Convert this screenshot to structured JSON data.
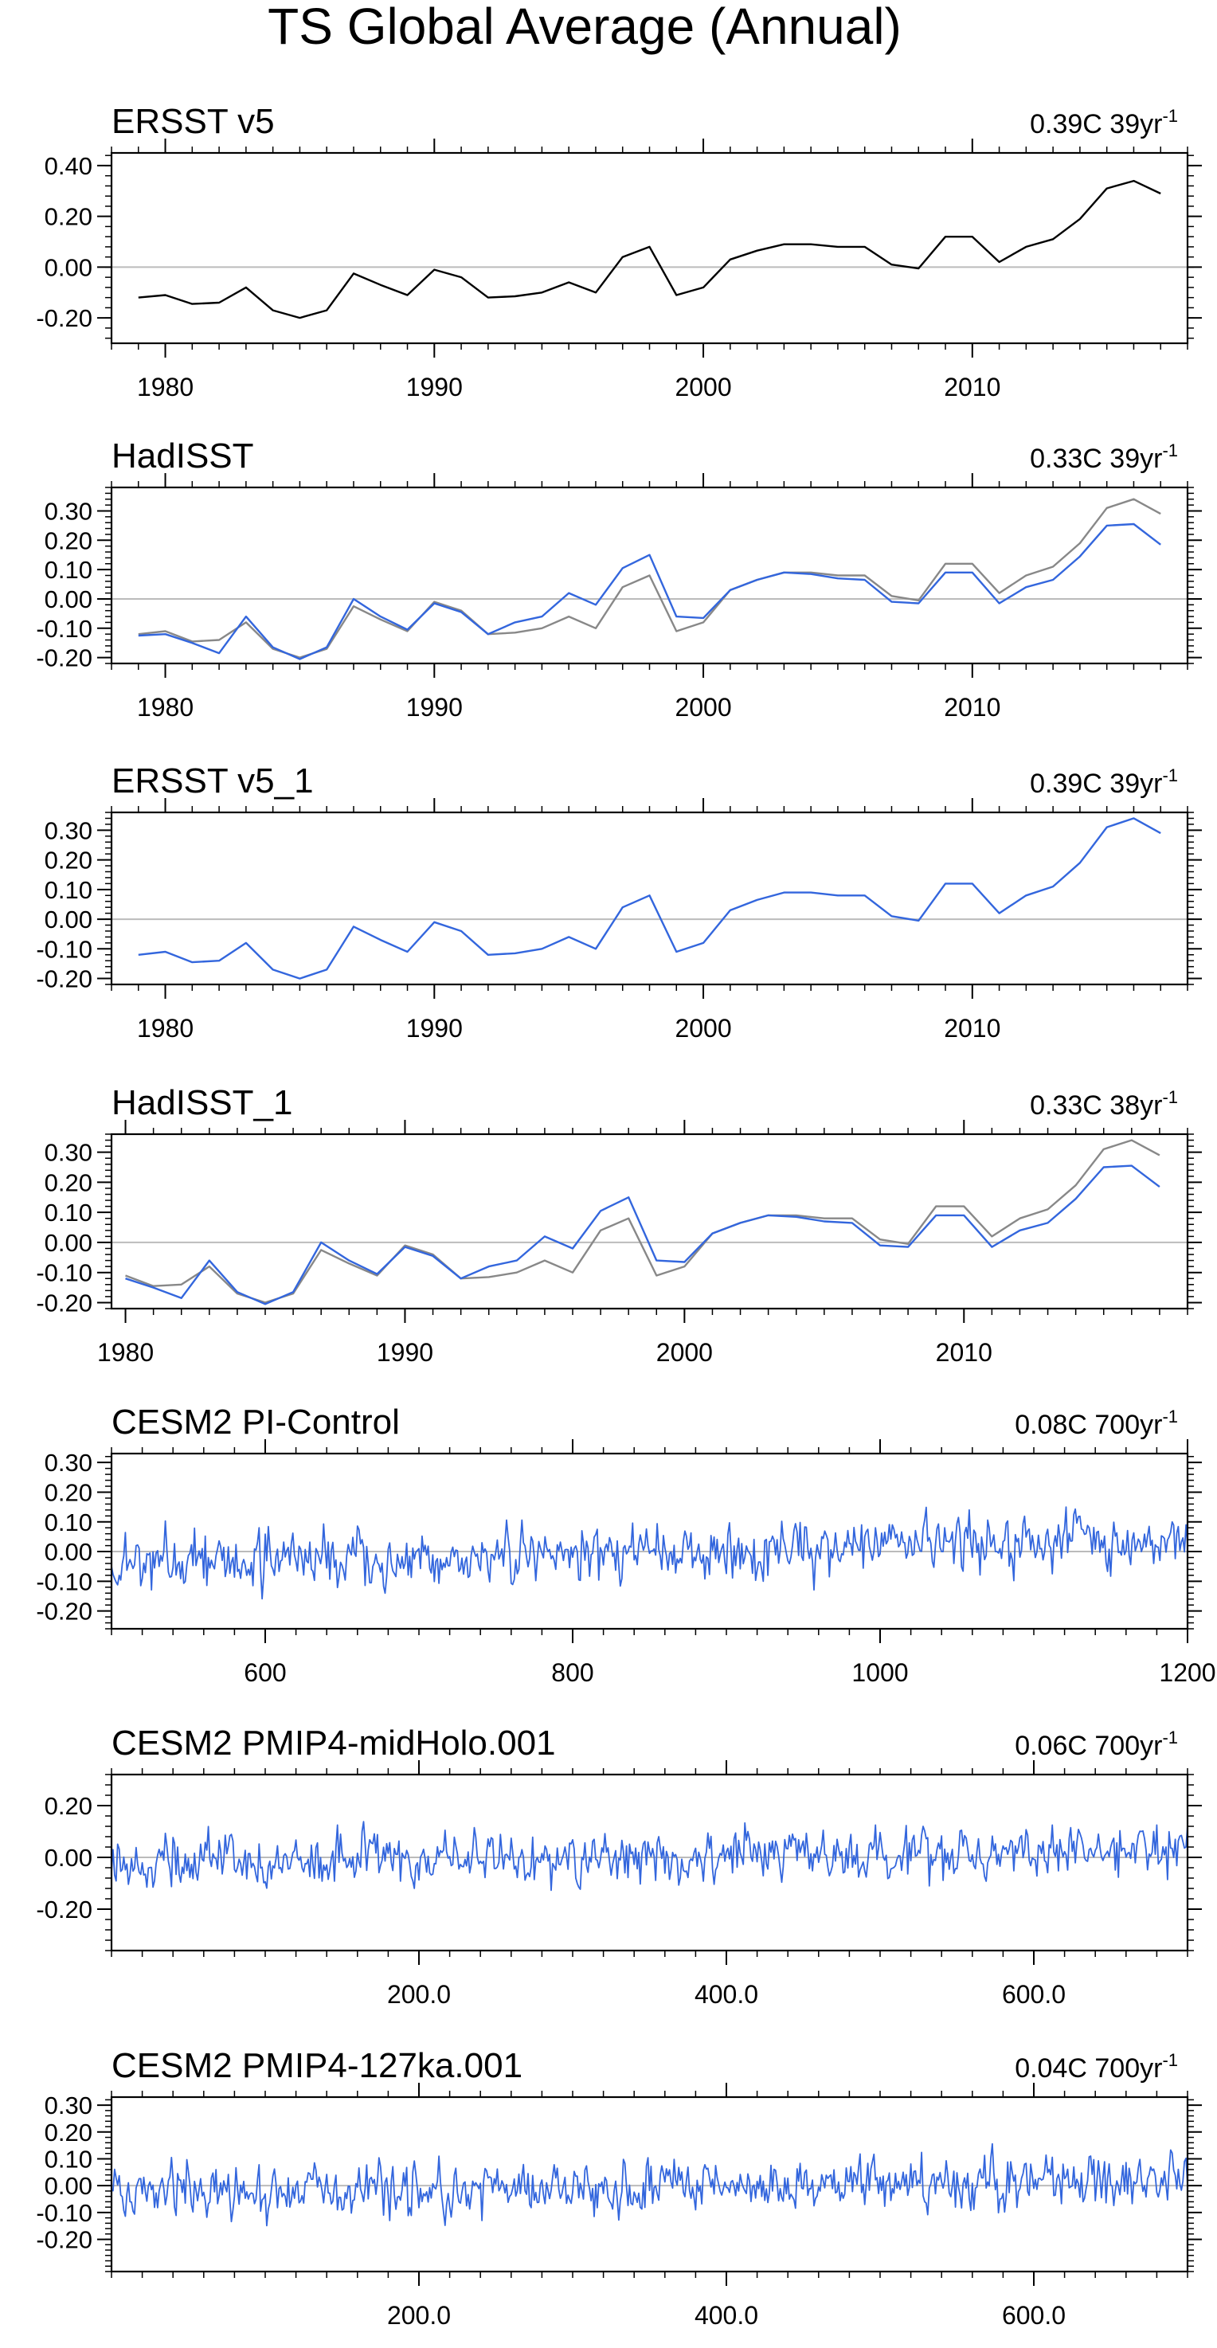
{
  "title": "TS Global Average (Annual)",
  "colors": {
    "obs": "#000000",
    "series": "#3366dd",
    "ref": "#888888",
    "zero": "#bbbbbb",
    "frame": "#000000"
  },
  "chart_data": [
    {
      "type": "line",
      "title": "ERSST v5",
      "trend": {
        "value": "0.39C 39yr",
        "exp": "-1"
      },
      "xlim": [
        1978,
        2018
      ],
      "ylim": [
        -0.3,
        0.45
      ],
      "xticks": [
        1980,
        1990,
        2000,
        2010
      ],
      "xtick_labels": [
        "1980",
        "1990",
        "2000",
        "2010"
      ],
      "yticks": [
        -0.2,
        0.0,
        0.2,
        0.4
      ],
      "ytick_labels": [
        "-0.20",
        "0.00",
        "0.20",
        "0.40"
      ],
      "x_start": 1979,
      "series": [
        {
          "name": "ERSST v5",
          "color": "obs",
          "values": [
            -0.12,
            -0.11,
            -0.145,
            -0.14,
            -0.08,
            -0.17,
            -0.2,
            -0.17,
            -0.025,
            -0.07,
            -0.11,
            -0.01,
            -0.04,
            -0.12,
            -0.115,
            -0.1,
            -0.06,
            -0.1,
            0.04,
            0.08,
            -0.11,
            -0.08,
            0.03,
            0.065,
            0.09,
            0.09,
            0.08,
            0.08,
            0.01,
            -0.005,
            0.12,
            0.12,
            0.02,
            0.08,
            0.11,
            0.19,
            0.31,
            0.34,
            0.29
          ]
        }
      ]
    },
    {
      "type": "line",
      "title": "HadISST",
      "trend": {
        "value": "0.33C 39yr",
        "exp": "-1"
      },
      "xlim": [
        1978,
        2018
      ],
      "ylim": [
        -0.22,
        0.38
      ],
      "xticks": [
        1980,
        1990,
        2000,
        2010
      ],
      "xtick_labels": [
        "1980",
        "1990",
        "2000",
        "2010"
      ],
      "yticks": [
        -0.2,
        -0.1,
        0.0,
        0.1,
        0.2,
        0.3
      ],
      "ytick_labels": [
        "-0.20",
        "-0.10",
        "0.00",
        "0.10",
        "0.20",
        "0.30"
      ],
      "x_start": 1979,
      "series": [
        {
          "name": "ERSST v5",
          "color": "ref",
          "values": [
            -0.12,
            -0.11,
            -0.145,
            -0.14,
            -0.08,
            -0.17,
            -0.2,
            -0.17,
            -0.025,
            -0.07,
            -0.11,
            -0.01,
            -0.04,
            -0.12,
            -0.115,
            -0.1,
            -0.06,
            -0.1,
            0.04,
            0.08,
            -0.11,
            -0.08,
            0.03,
            0.065,
            0.09,
            0.09,
            0.08,
            0.08,
            0.01,
            -0.005,
            0.12,
            0.12,
            0.02,
            0.08,
            0.11,
            0.19,
            0.31,
            0.34,
            0.29
          ]
        },
        {
          "name": "HadISST",
          "color": "series",
          "values": [
            -0.125,
            -0.12,
            -0.15,
            -0.185,
            -0.06,
            -0.165,
            -0.205,
            -0.165,
            0.0,
            -0.06,
            -0.105,
            -0.015,
            -0.045,
            -0.12,
            -0.08,
            -0.06,
            0.02,
            -0.02,
            0.105,
            0.15,
            -0.06,
            -0.065,
            0.03,
            0.065,
            0.09,
            0.085,
            0.07,
            0.065,
            -0.01,
            -0.015,
            0.09,
            0.09,
            -0.015,
            0.04,
            0.065,
            0.145,
            0.25,
            0.255,
            0.185
          ]
        }
      ]
    },
    {
      "type": "line",
      "title": "ERSST v5_1",
      "trend": {
        "value": "0.39C 39yr",
        "exp": "-1"
      },
      "xlim": [
        1978,
        2018
      ],
      "ylim": [
        -0.22,
        0.36
      ],
      "xticks": [
        1980,
        1990,
        2000,
        2010
      ],
      "xtick_labels": [
        "1980",
        "1990",
        "2000",
        "2010"
      ],
      "yticks": [
        -0.2,
        -0.1,
        0.0,
        0.1,
        0.2,
        0.3
      ],
      "ytick_labels": [
        "-0.20",
        "-0.10",
        "0.00",
        "0.10",
        "0.20",
        "0.30"
      ],
      "x_start": 1979,
      "series": [
        {
          "name": "ERSST v5_1",
          "color": "series",
          "values": [
            -0.12,
            -0.11,
            -0.145,
            -0.14,
            -0.08,
            -0.17,
            -0.2,
            -0.17,
            -0.025,
            -0.07,
            -0.11,
            -0.01,
            -0.04,
            -0.12,
            -0.115,
            -0.1,
            -0.06,
            -0.1,
            0.04,
            0.08,
            -0.11,
            -0.08,
            0.03,
            0.065,
            0.09,
            0.09,
            0.08,
            0.08,
            0.01,
            -0.005,
            0.12,
            0.12,
            0.02,
            0.08,
            0.11,
            0.19,
            0.31,
            0.34,
            0.29
          ]
        }
      ]
    },
    {
      "type": "line",
      "title": "HadISST_1",
      "trend": {
        "value": "0.33C 38yr",
        "exp": "-1"
      },
      "xlim": [
        1979.5,
        2018
      ],
      "ylim": [
        -0.22,
        0.36
      ],
      "xticks": [
        1980,
        1990,
        2000,
        2010
      ],
      "xtick_labels": [
        "1980",
        "1990",
        "2000",
        "2010"
      ],
      "yticks": [
        -0.2,
        -0.1,
        0.0,
        0.1,
        0.2,
        0.3
      ],
      "ytick_labels": [
        "-0.20",
        "-0.10",
        "0.00",
        "0.10",
        "0.20",
        "0.30"
      ],
      "x_start": 1980,
      "series": [
        {
          "name": "ERSST v5_1",
          "color": "ref",
          "values": [
            -0.11,
            -0.145,
            -0.14,
            -0.08,
            -0.17,
            -0.2,
            -0.17,
            -0.025,
            -0.07,
            -0.11,
            -0.01,
            -0.04,
            -0.12,
            -0.115,
            -0.1,
            -0.06,
            -0.1,
            0.04,
            0.08,
            -0.11,
            -0.08,
            0.03,
            0.065,
            0.09,
            0.09,
            0.08,
            0.08,
            0.01,
            -0.005,
            0.12,
            0.12,
            0.02,
            0.08,
            0.11,
            0.19,
            0.31,
            0.34,
            0.29
          ]
        },
        {
          "name": "HadISST_1",
          "color": "series",
          "values": [
            -0.12,
            -0.15,
            -0.185,
            -0.06,
            -0.165,
            -0.205,
            -0.165,
            0.0,
            -0.06,
            -0.105,
            -0.015,
            -0.045,
            -0.12,
            -0.08,
            -0.06,
            0.02,
            -0.02,
            0.105,
            0.15,
            -0.06,
            -0.065,
            0.03,
            0.065,
            0.09,
            0.085,
            0.07,
            0.065,
            -0.01,
            -0.015,
            0.09,
            0.09,
            -0.015,
            0.04,
            0.065,
            0.145,
            0.25,
            0.255,
            0.185
          ]
        }
      ]
    },
    {
      "type": "line",
      "title": "CESM2 PI-Control",
      "trend": {
        "value": "0.08C 700yr",
        "exp": "-1"
      },
      "xlim": [
        500,
        1200
      ],
      "ylim": [
        -0.26,
        0.33
      ],
      "xticks": [
        600,
        800,
        1000,
        1200
      ],
      "xtick_labels": [
        "600",
        "800",
        "1000",
        "1200"
      ],
      "yticks": [
        -0.2,
        -0.1,
        0.0,
        0.1,
        0.2,
        0.3
      ],
      "ytick_labels": [
        "-0.20",
        "-0.10",
        "0.00",
        "0.10",
        "0.20",
        "0.30"
      ],
      "synthetic": {
        "n": 701,
        "x0": 500,
        "dx": 1,
        "amp": 0.075,
        "seed": 11,
        "trend": 0.08
      },
      "series": [
        {
          "name": "CESM2 PI-Control",
          "color": "series",
          "values": []
        }
      ]
    },
    {
      "type": "line",
      "title": "CESM2 PMIP4-midHolo.001",
      "trend": {
        "value": "0.06C 700yr",
        "exp": "-1"
      },
      "xlim": [
        0,
        700
      ],
      "ylim": [
        -0.36,
        0.32
      ],
      "xticks": [
        200,
        400,
        600
      ],
      "xtick_labels": [
        "200.0",
        "400.0",
        "600.0"
      ],
      "yticks": [
        -0.2,
        0.0,
        0.2
      ],
      "ytick_labels": [
        "-0.20",
        "0.00",
        "0.20"
      ],
      "synthetic": {
        "n": 701,
        "x0": 0,
        "dx": 1,
        "amp": 0.08,
        "seed": 23,
        "trend": 0.06
      },
      "series": [
        {
          "name": "CESM2 PMIP4-midHolo.001",
          "color": "series",
          "values": []
        }
      ]
    },
    {
      "type": "line",
      "title": "CESM2 PMIP4-127ka.001",
      "trend": {
        "value": "0.04C 700yr",
        "exp": "-1"
      },
      "xlim": [
        0,
        700
      ],
      "ylim": [
        -0.32,
        0.33
      ],
      "xticks": [
        200,
        400,
        600
      ],
      "xtick_labels": [
        "200.0",
        "400.0",
        "600.0"
      ],
      "yticks": [
        -0.2,
        -0.1,
        0.0,
        0.1,
        0.2,
        0.3
      ],
      "ytick_labels": [
        "-0.20",
        "-0.10",
        "0.00",
        "0.10",
        "0.20",
        "0.30"
      ],
      "synthetic": {
        "n": 701,
        "x0": 0,
        "dx": 1,
        "amp": 0.08,
        "seed": 37,
        "trend": 0.04
      },
      "series": [
        {
          "name": "CESM2 PMIP4-127ka.001",
          "color": "series",
          "values": []
        }
      ]
    }
  ]
}
